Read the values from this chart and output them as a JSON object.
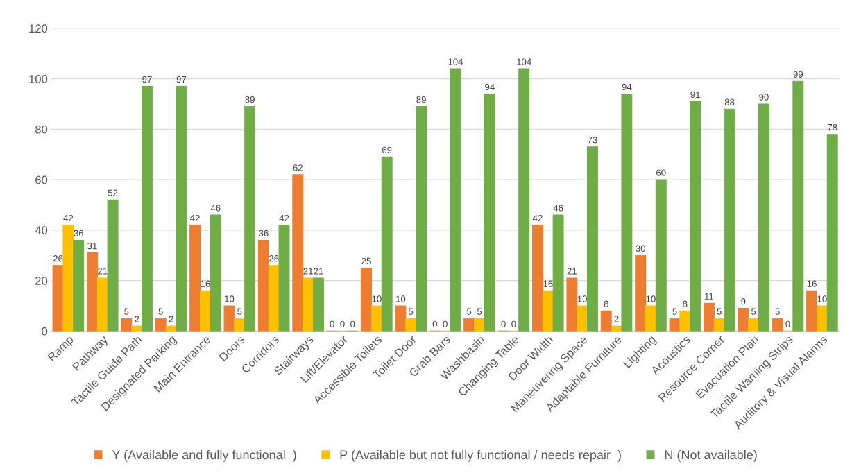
{
  "chart_data": {
    "type": "bar",
    "categories": [
      "Ramp",
      "Pathway",
      "Tactile Guide Path",
      "Designated Parking",
      "Main Entrance",
      "Doors",
      "Corridors",
      "Stairways",
      "Lift/Elevator",
      "Accessible Toilets",
      "Toilet Door",
      "Grab Bars",
      "Washbasin",
      "Changing Table",
      "Door Width",
      "Maneuvering Space",
      "Adaptable Furniture",
      "Lighting",
      "Acoustics",
      "Resource Corner",
      "Evacuation Plan",
      "Tactile Warning Strips",
      "Auditory & Visual Alarms"
    ],
    "series": [
      {
        "name": "Y (Available and fully functional  )",
        "color": "#ed7d31",
        "values": [
          26,
          31,
          5,
          5,
          42,
          10,
          36,
          62,
          0,
          25,
          10,
          0,
          5,
          0,
          42,
          21,
          8,
          30,
          5,
          11,
          9,
          5,
          16
        ]
      },
      {
        "name": "P (Available but not fully functional / needs repair  )",
        "color": "#ffc000",
        "values": [
          42,
          21,
          2,
          2,
          16,
          5,
          26,
          21,
          0,
          10,
          5,
          0,
          5,
          0,
          16,
          10,
          2,
          10,
          8,
          5,
          5,
          0,
          10
        ]
      },
      {
        "name": "N (Not available)",
        "color": "#70ad47",
        "values": [
          36,
          52,
          97,
          97,
          46,
          89,
          42,
          21,
          0,
          69,
          89,
          104,
          94,
          104,
          46,
          73,
          94,
          60,
          91,
          88,
          90,
          99,
          78
        ]
      }
    ],
    "ylim": [
      0,
      120
    ],
    "yticks": [
      0,
      20,
      40,
      60,
      80,
      100,
      120
    ],
    "grid": "y",
    "legend": "bottom",
    "data_labels": true
  }
}
